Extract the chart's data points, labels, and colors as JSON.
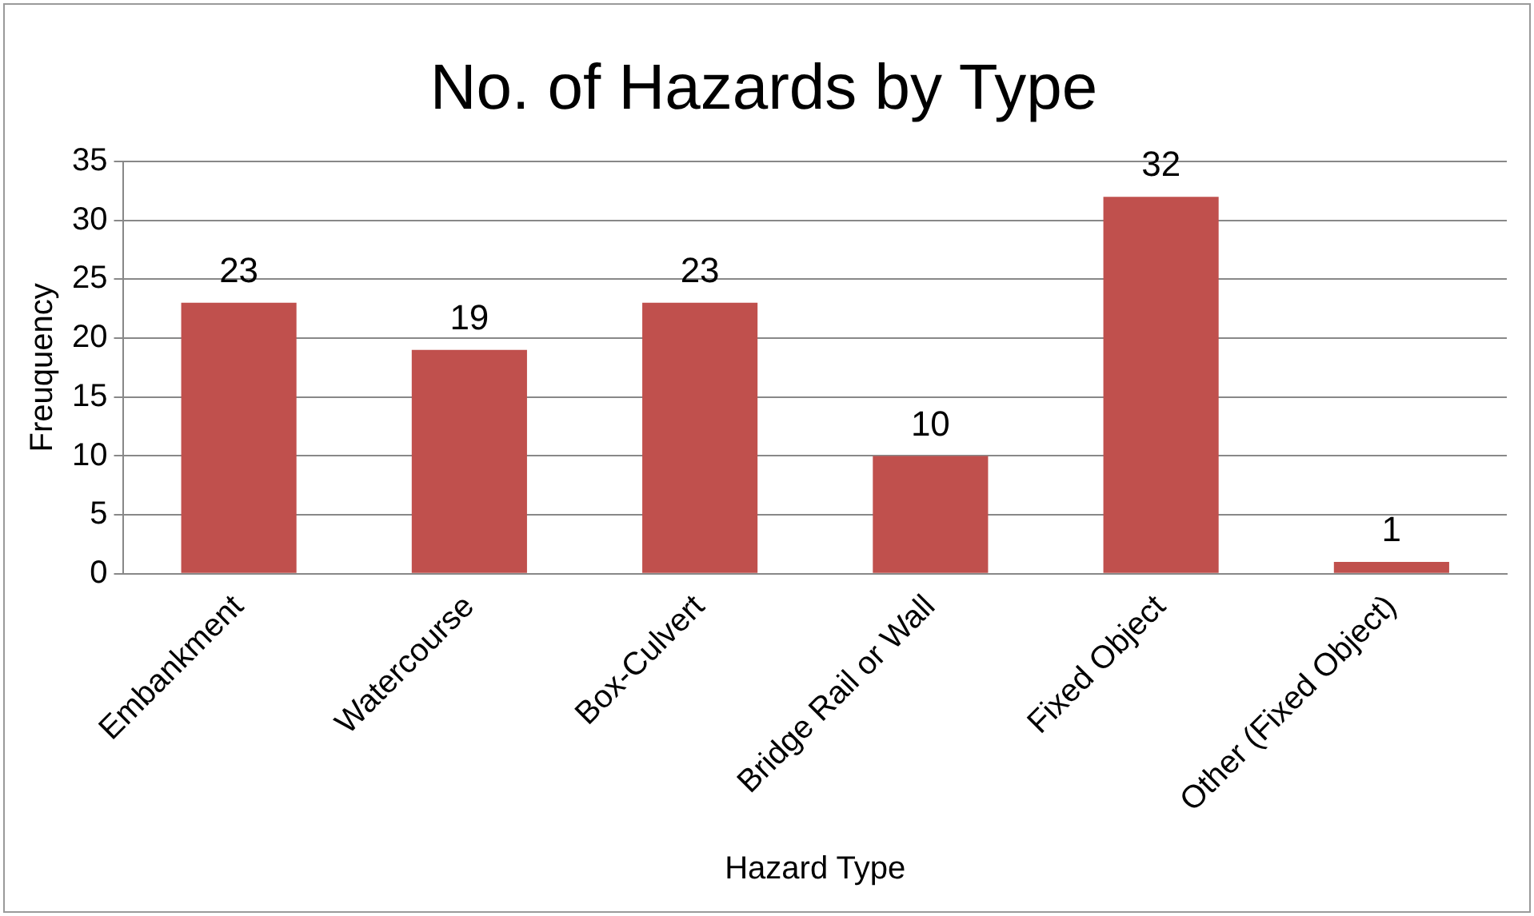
{
  "chart_data": {
    "type": "bar",
    "title": "No. of Hazards by Type",
    "xlabel": "Hazard Type",
    "ylabel": "Freuquency",
    "categories": [
      "Embankment",
      "Watercourse",
      "Box-Culvert",
      "Bridge Rail or Wall",
      "Fixed Object",
      "Other (Fixed Object)"
    ],
    "values": [
      23,
      19,
      23,
      10,
      32,
      1
    ],
    "color": "#c0504d",
    "ylim": [
      0,
      35
    ],
    "yticks": [
      0,
      5,
      10,
      15,
      20,
      25,
      30,
      35
    ],
    "grid": "y",
    "legend": false,
    "data_labels": true
  }
}
